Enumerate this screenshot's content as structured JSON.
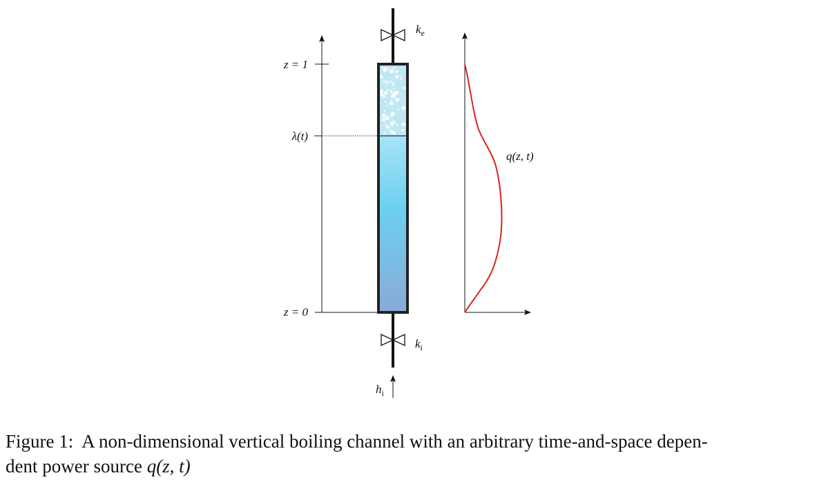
{
  "labels": {
    "z_top": "z = 1",
    "z_bottom": "z = 0",
    "lambda": "λ(t)",
    "k_exit": {
      "base": "k",
      "sub": "e"
    },
    "k_inlet": {
      "base": "k",
      "sub": "i"
    },
    "h_inlet": {
      "base": "h",
      "sub": "i"
    },
    "power_curve": "q(z, t)"
  },
  "caption": {
    "prefix": "Figure 1:",
    "text": "A non-dimensional vertical boiling channel with an arbitrary time-and-space depen-",
    "text_line2": "dent power source",
    "math": "q(z, t)"
  },
  "colors": {
    "channel_outline": "#222222",
    "vapor_region": "#bfe7f4",
    "liquid_top": "#a7e4f6",
    "liquid_mid": "#6dd0f0",
    "liquid_bottom": "#89aad8",
    "power_curve": "#d8231c",
    "bubble": "#ffffff"
  }
}
